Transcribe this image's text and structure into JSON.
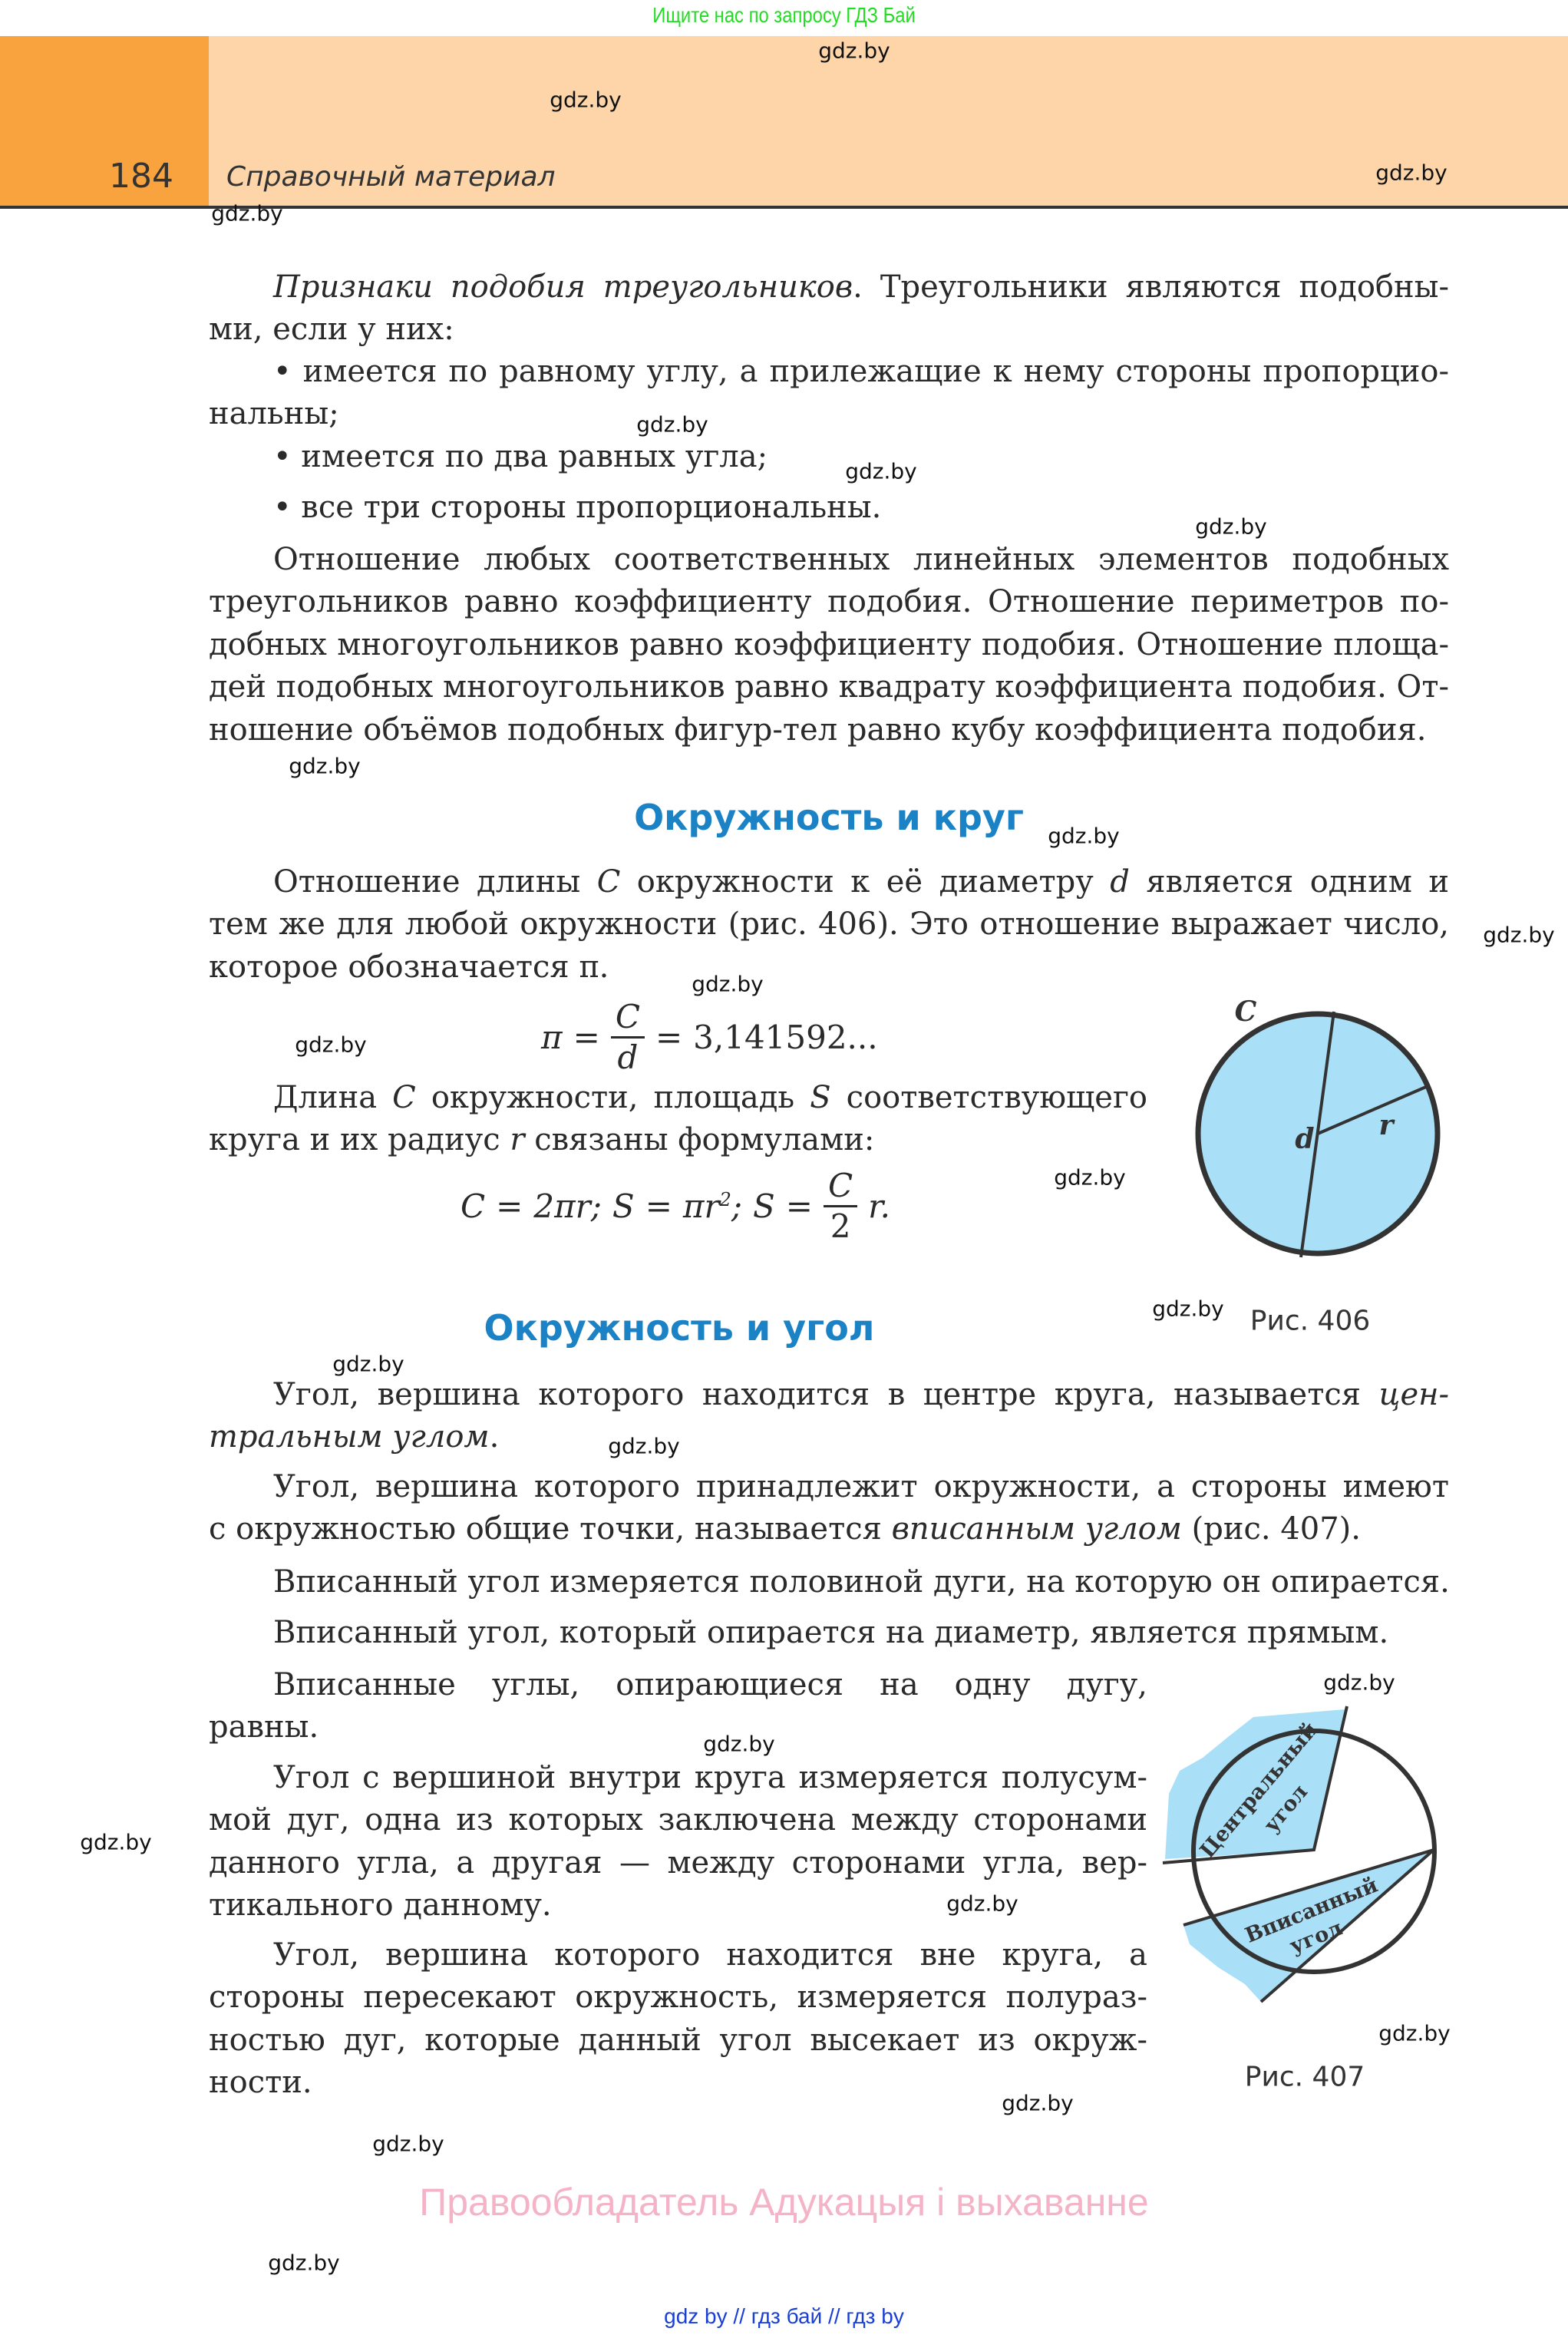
{
  "banner": "Ищите нас по запросу ГДЗ Бай",
  "header": {
    "page_number": "184",
    "section": "Справочный материал"
  },
  "colors": {
    "header_orange": "#f8a33e",
    "header_peach": "#fdd5a8",
    "heading_blue": "#1b82c5",
    "figure_fill": "#aadff8",
    "owner_pink": "#f4b3c6",
    "links_blue": "#1a3fd6",
    "banner_green": "#22dd22"
  },
  "headings": [
    "Окружность и круг",
    "Окружность и угол"
  ],
  "paragraphs": [
    {
      "lines": [
        [
          {
            "t": "Признаки подобия треугольников",
            "i": true
          },
          {
            "t": ". Треугольники являются подобны-"
          }
        ],
        [
          {
            "t": "ми, если у них:"
          }
        ]
      ]
    },
    {
      "lines": [
        [
          {
            "t": "• имеется по равному углу, а прилежащие к нему стороны пропорцио-"
          }
        ],
        [
          {
            "t": "нальны;"
          }
        ]
      ]
    },
    {
      "lines": [
        [
          {
            "t": "• имеется по два равных угла;"
          }
        ]
      ]
    },
    {
      "lines": [
        [
          {
            "t": "• все три стороны пропорциональны."
          }
        ]
      ]
    },
    {
      "lines": [
        [
          {
            "t": "Отношение любых соответственных линейных элементов подобных"
          }
        ],
        [
          {
            "t": "треугольников равно коэффициенту подобия. Отношение периметров по-"
          }
        ],
        [
          {
            "t": "добных многоугольников равно коэффициенту подобия. Отношение площа-"
          }
        ],
        [
          {
            "t": "дей подобных многоугольников равно квадрату коэффициента подобия. От-"
          }
        ],
        [
          {
            "t": "ношение объёмов подобных фигур-тел равно кубу коэффициента подобия."
          }
        ]
      ]
    },
    {
      "lines": [
        [
          {
            "t": "Отношение длины "
          },
          {
            "t": "C",
            "i": true
          },
          {
            "t": " окружности к её диаметру "
          },
          {
            "t": "d",
            "i": true
          },
          {
            "t": " является одним и"
          }
        ],
        [
          {
            "t": "тем же для любой окружности (рис. 406). Это отношение выражает число,"
          }
        ],
        [
          {
            "t": "которое обозначается π."
          }
        ]
      ]
    },
    {
      "lines": [
        [
          {
            "t": "Длина "
          },
          {
            "t": "C",
            "i": true
          },
          {
            "t": " окружности, площадь "
          },
          {
            "t": "S",
            "i": true
          },
          {
            "t": " соответствующего"
          }
        ],
        [
          {
            "t": "круга и их радиус "
          },
          {
            "t": "r",
            "i": true
          },
          {
            "t": " связаны формулами:"
          }
        ]
      ]
    },
    {
      "lines": [
        [
          {
            "t": "Угол, вершина которого находится в центре круга, называется "
          },
          {
            "t": "цен-",
            "i": true
          }
        ],
        [
          {
            "t": "тральным углом",
            "i": true
          },
          {
            "t": "."
          }
        ]
      ]
    },
    {
      "lines": [
        [
          {
            "t": "Угол, вершина которого принадлежит окружности, а стороны имеют"
          }
        ],
        [
          {
            "t": "с окружностью общие точки, называется "
          },
          {
            "t": "вписанным углом",
            "i": true
          },
          {
            "t": " (рис. 407)."
          }
        ]
      ]
    },
    {
      "lines": [
        [
          {
            "t": "Вписанный угол измеряется половиной дуги, на которую он опирается."
          }
        ]
      ]
    },
    {
      "lines": [
        [
          {
            "t": "Вписанный угол, который опирается на диаметр, является прямым."
          }
        ]
      ]
    },
    {
      "lines": [
        [
          {
            "t": "Вписанные углы, опирающиеся на одну дугу,"
          }
        ],
        [
          {
            "t": "равны."
          }
        ]
      ]
    },
    {
      "lines": [
        [
          {
            "t": "Угол с вершиной внутри круга измеряется полусум-"
          }
        ],
        [
          {
            "t": "мой дуг, одна из которых заключена между сторонами"
          }
        ],
        [
          {
            "t": "данного угла, а другая — между сторонами угла, вер-"
          }
        ],
        [
          {
            "t": "тикального данному."
          }
        ]
      ]
    },
    {
      "lines": [
        [
          {
            "t": "Угол, вершина которого находится вне круга, а"
          }
        ],
        [
          {
            "t": "стороны пересекают окружность, измеряется полураз-"
          }
        ],
        [
          {
            "t": "ностью дуг, которые данный угол высекает из окруж-"
          }
        ],
        [
          {
            "t": "ности."
          }
        ]
      ]
    }
  ],
  "formula_pi": {
    "lhs": "π",
    "eq": "=",
    "num": "C",
    "den": "d",
    "eq2": "=",
    "value": "3,141592..."
  },
  "formula_circle": {
    "c": "C",
    "eq": "=",
    "c_rhs": "2πr;",
    "s": "S",
    "s_rhs": "πr",
    "sq": "2",
    "semi": ";",
    "s2": "S",
    "num": "C",
    "den": "2",
    "tail": "r."
  },
  "figure_406": {
    "label_c": "C",
    "label_d": "d",
    "label_r": "r",
    "caption": "Рис. 406"
  },
  "figure_407": {
    "central_1": "Центральный",
    "central_2": "угол",
    "inscribed_1": "Вписанный",
    "inscribed_2": "угол",
    "caption": "Рис. 407"
  },
  "watermark": "gdz.by",
  "footer": {
    "owner": "Правообладатель Адукацыя і выхаванне",
    "links": "gdz by  //  гдз бай  //  гдз by"
  }
}
